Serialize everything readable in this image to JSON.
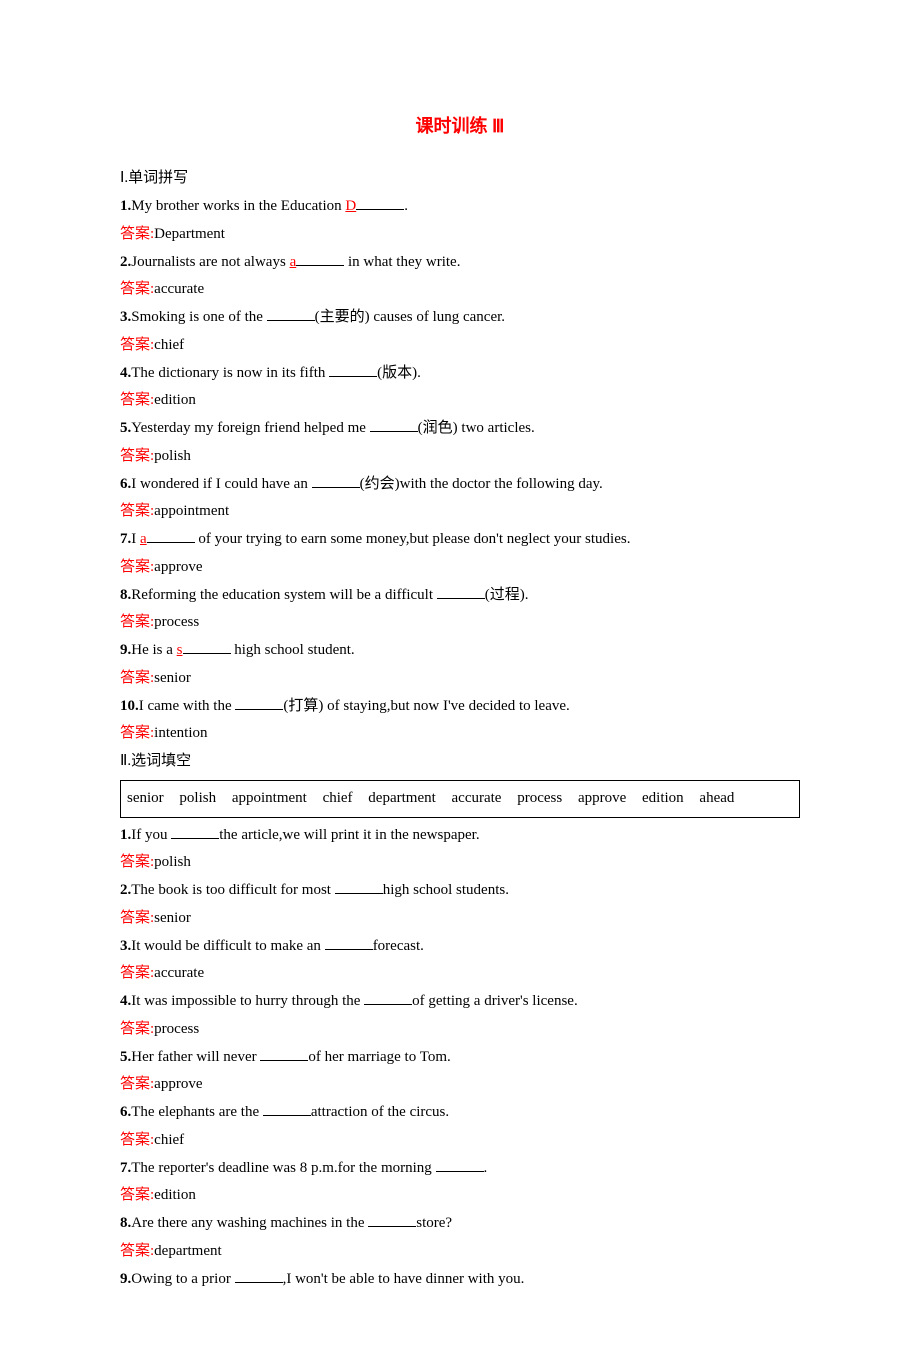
{
  "title": "课时训练 Ⅲ",
  "section1": {
    "header": "Ⅰ.单词拼写",
    "items": [
      {
        "num": "1.",
        "pre": "My brother works in the Education ",
        "letter": "D",
        "post": ".",
        "answer": "Department"
      },
      {
        "num": "2.",
        "pre": "Journalists are not always ",
        "letter": "a",
        "post": " in what they write.",
        "answer": "accurate"
      },
      {
        "num": "3.",
        "pre": "Smoking is one of the ",
        "hint": "(主要的)",
        "post": " causes of lung cancer.",
        "answer": "chief"
      },
      {
        "num": "4.",
        "pre": "The dictionary is now in its fifth ",
        "hint": "(版本)",
        "post": ".",
        "answer": "edition"
      },
      {
        "num": "5.",
        "pre": "Yesterday my foreign friend helped me ",
        "hint": "(润色)",
        "post": " two articles.",
        "answer": "polish"
      },
      {
        "num": "6.",
        "pre": "I wondered if I could have an ",
        "hint": "(约会)",
        "post": "with the doctor the following day.",
        "answer": "appointment"
      },
      {
        "num": "7.",
        "pre": "I ",
        "letter": "a",
        "post": " of your trying to earn some money,but please don't neglect your studies.",
        "answer": "approve"
      },
      {
        "num": "8.",
        "pre": "Reforming the education system will be a difficult ",
        "hint": "(过程)",
        "post": ".",
        "answer": "process"
      },
      {
        "num": "9.",
        "pre": "He is a ",
        "letter": "s",
        "post": " high school student.",
        "answer": "senior"
      },
      {
        "num": "10.",
        "pre": "I came with the ",
        "hint": "(打算)",
        "post": " of staying,but now I've decided to leave.",
        "answer": "intention"
      }
    ]
  },
  "section2": {
    "header": "Ⅱ.选词填空",
    "wordbox": "senior  polish  appointment  chief  department  accurate  process  approve  edition  ahead",
    "items": [
      {
        "num": "1.",
        "pre": "If you ",
        "post": "the article,we will print it in the newspaper.",
        "answer": "polish"
      },
      {
        "num": "2.",
        "pre": "The book is too difficult for most ",
        "post": "high school students.",
        "answer": "senior"
      },
      {
        "num": "3.",
        "pre": "It would be difficult to make an ",
        "post": "forecast.",
        "answer": "accurate"
      },
      {
        "num": "4.",
        "pre": "It was impossible to hurry through the ",
        "post": "of getting a driver's license.",
        "answer": "process"
      },
      {
        "num": "5.",
        "pre": "Her father will never ",
        "post": "of her marriage to Tom.",
        "answer": "approve"
      },
      {
        "num": "6.",
        "pre": "The elephants are the ",
        "post": "attraction of the circus.",
        "answer": "chief"
      },
      {
        "num": "7.",
        "pre": "The reporter's deadline was 8 p.m.for the morning ",
        "post": ".",
        "answer": "edition"
      },
      {
        "num": "8.",
        "pre": "Are there any washing machines in the ",
        "post": "store?",
        "answer": "department"
      },
      {
        "num": "9.",
        "pre": "Owing to a prior ",
        "post": ",I won't be able to have dinner with you.",
        "answer": ""
      }
    ]
  },
  "labels": {
    "answer": "答案:"
  }
}
